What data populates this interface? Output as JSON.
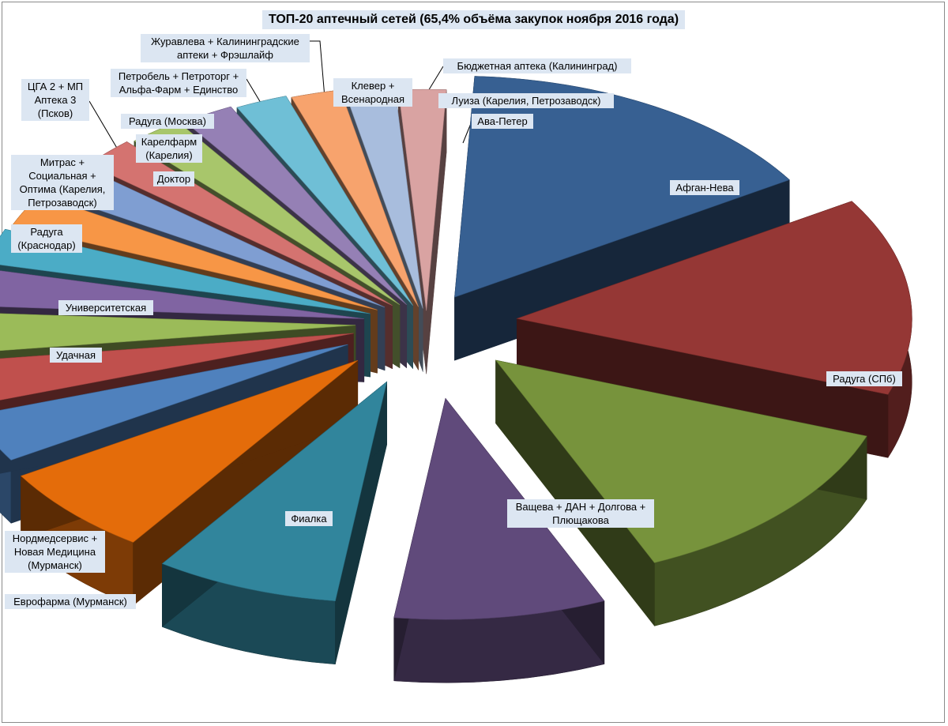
{
  "chart_data": {
    "type": "pie",
    "title": "ТОП-20 аптечный сетей (65,4% объёма закупок ноября 2016 года)",
    "slices": [
      {
        "label": "Афган-Нева",
        "value": 15.0,
        "color": "#376092",
        "explode": 70
      },
      {
        "label": "Радуга (СПб)",
        "value": 14.2,
        "color": "#953735",
        "explode": 115
      },
      {
        "label": "Ващева + ДАН + Долгова + Плющакова",
        "value": 12.6,
        "color": "#77933c",
        "explode": 120
      },
      {
        "label": "Фиалка",
        "value": 8.5,
        "color": "#604a7b",
        "explode": 170
      },
      {
        "label": "Еврофарма (Мурманск)",
        "value": 7.4,
        "color": "#31859c",
        "explode": 140
      },
      {
        "label": "Нордмедсервис + Новая Медицина (Мурманск)",
        "value": 6.5,
        "color": "#e46c0a",
        "explode": 120
      },
      {
        "label": "Удачная",
        "value": 3.5,
        "color": "#4f81bd",
        "explode": 110
      },
      {
        "label": "Университетская",
        "value": 3.1,
        "color": "#c0504d",
        "explode": 95
      },
      {
        "label": "Радуга (Краснодар)",
        "value": 2.9,
        "color": "#9bbb59",
        "explode": 90
      },
      {
        "label": "Митрас + Социальная + Оптима (Карелия, Петрозаводск)",
        "value": 2.7,
        "color": "#8064a2",
        "explode": 80
      },
      {
        "label": "ЦГА 2 + МП Аптека 3 (Псков)",
        "value": 2.5,
        "color": "#4bacc6",
        "explode": 75
      },
      {
        "label": "Доктор",
        "value": 2.4,
        "color": "#f79646",
        "explode": 70
      },
      {
        "label": "Карелфарм (Карелия)",
        "value": 2.3,
        "color": "#7f9ed2",
        "explode": 65
      },
      {
        "label": "Радуга (Москва)",
        "value": 2.2,
        "color": "#d47370",
        "explode": 60
      },
      {
        "label": "Петробель + Петроторг + Альфа-Фарм + Единство",
        "value": 2.2,
        "color": "#a8c66b",
        "explode": 55
      },
      {
        "label": "Журавлева + Калининградские аптеки + Фрэшлайф",
        "value": 2.1,
        "color": "#9580b5",
        "explode": 50
      },
      {
        "label": "Клевер + Всенародная",
        "value": 2.1,
        "color": "#6fbfd6",
        "explode": 45
      },
      {
        "label": "Бюджетная аптека (Калининград)",
        "value": 2.0,
        "color": "#f7a36d",
        "explode": 40
      },
      {
        "label": "Луиза (Карелия, Петрозаводск)",
        "value": 2.0,
        "color": "#a8bddd",
        "explode": 35
      },
      {
        "label": "Ава-Петер",
        "value": 1.9,
        "color": "#d9a3a2",
        "explode": 30
      }
    ]
  },
  "labels": [
    {
      "text": "Афган-Нева"
    },
    {
      "text": "Радуга (СПб)"
    },
    {
      "text": "Ващева + ДАН + Долгова + Плющакова"
    },
    {
      "text": "Фиалка"
    },
    {
      "text": "Еврофарма (Мурманск)"
    },
    {
      "text": "Нордмедсервис + Новая Медицина (Мурманск)"
    },
    {
      "text": "Удачная"
    },
    {
      "text": "Университетская"
    },
    {
      "text": "Радуга (Краснодар)"
    },
    {
      "text": "Митрас + Социальная + Оптима (Карелия, Петрозаводск)"
    },
    {
      "text": "ЦГА 2 + МП Аптека 3 (Псков)"
    },
    {
      "text": "Доктор"
    },
    {
      "text": "Карелфарм (Карелия)"
    },
    {
      "text": "Радуга (Москва)"
    },
    {
      "text": "Петробель + Петроторг + Альфа-Фарм + Единство"
    },
    {
      "text": "Журавлева + Калининградские аптеки + Фрэшлайф"
    },
    {
      "text": "Клевер + Всенародная"
    },
    {
      "text": "Бюджетная аптека (Калининград)"
    },
    {
      "text": "Луиза (Карелия, Петрозаводск)"
    },
    {
      "text": "Ава-Петер"
    }
  ]
}
